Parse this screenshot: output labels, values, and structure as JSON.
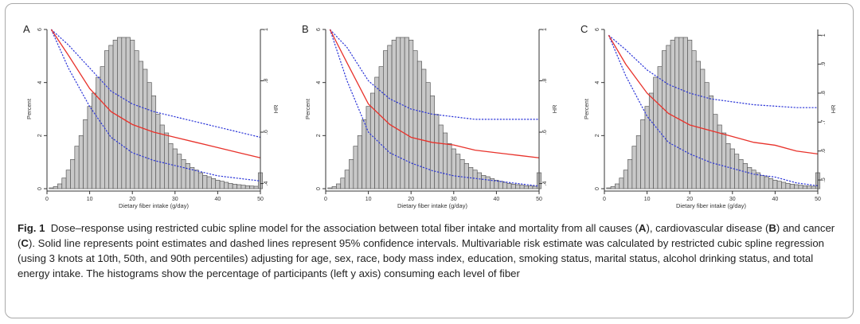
{
  "caption": {
    "label": "Fig. 1",
    "seg1": "Dose–response using restricted cubic spline model for the association between total fiber intake and mortality from all causes (",
    "letter_a": "A",
    "seg2": "), cardiovascular disease (",
    "letter_b": "B",
    "seg3": ") and cancer (",
    "letter_c": "C",
    "seg4": "). Solid line represents point estimates and dashed lines represent 95% confidence intervals. Multivariable risk estimate was calculated by restricted cubic spline regression (using 3 knots at 10th, 50th, and 90th percentiles) adjusting for age, sex, race, body mass index, education, smoking status, marital status, alcohol drinking status, and total energy intake. The histograms show the percentage of participants (left y axis) consuming each level of fiber"
  },
  "chart_data": [
    {
      "type": "bar",
      "panel": "A",
      "xlabel": "Dietary fiber intake (g/day)",
      "ylabel": "Percent",
      "y2label": "HR",
      "xlim": [
        0,
        50
      ],
      "ylim": [
        0,
        6
      ],
      "y2lim": [
        0.38,
        1.0
      ],
      "xticks": [
        0,
        10,
        20,
        30,
        40,
        50
      ],
      "yticks": [
        0,
        2,
        4,
        6
      ],
      "y2ticks": [
        0.4,
        0.6,
        0.8,
        1
      ],
      "y2ticklabels": [
        ".4",
        ".6",
        ".8",
        "1"
      ],
      "histogram": {
        "bin_start": 1,
        "bin_width": 1,
        "values": [
          0.03,
          0.08,
          0.18,
          0.4,
          0.7,
          1.1,
          1.6,
          2.0,
          2.6,
          3.1,
          3.6,
          4.2,
          4.6,
          5.2,
          5.4,
          5.6,
          5.7,
          5.7,
          5.7,
          5.6,
          5.2,
          4.8,
          4.5,
          4.0,
          3.5,
          2.8,
          2.4,
          2.1,
          1.7,
          1.5,
          1.3,
          1.1,
          0.95,
          0.8,
          0.7,
          0.6,
          0.5,
          0.45,
          0.38,
          0.32,
          0.28,
          0.24,
          0.2,
          0.17,
          0.15,
          0.13,
          0.11,
          0.1,
          0.09,
          0.6
        ]
      },
      "spline_x": [
        1,
        5,
        10,
        15,
        20,
        25,
        30,
        35,
        40,
        45,
        50
      ],
      "point_estimate": [
        1.0,
        0.9,
        0.77,
        0.68,
        0.63,
        0.6,
        0.58,
        0.56,
        0.54,
        0.52,
        0.5
      ],
      "ci_lower": [
        1.0,
        0.85,
        0.7,
        0.58,
        0.52,
        0.49,
        0.47,
        0.45,
        0.43,
        0.42,
        0.41
      ],
      "ci_upper": [
        1.0,
        0.94,
        0.85,
        0.76,
        0.71,
        0.68,
        0.66,
        0.64,
        0.62,
        0.6,
        0.58
      ]
    },
    {
      "type": "bar",
      "panel": "B",
      "xlabel": "Dietary fiber intake (g/day)",
      "ylabel": "Percent",
      "y2label": "HR",
      "xlim": [
        0,
        50
      ],
      "ylim": [
        0,
        6
      ],
      "y2lim": [
        0.38,
        1.0
      ],
      "xticks": [
        0,
        10,
        20,
        30,
        40,
        50
      ],
      "yticks": [
        0,
        2,
        4,
        6
      ],
      "y2ticks": [
        0.4,
        0.6,
        0.8,
        1
      ],
      "y2ticklabels": [
        ".4",
        ".6",
        ".8",
        "1"
      ],
      "histogram": {
        "bin_start": 1,
        "bin_width": 1,
        "values": [
          0.03,
          0.08,
          0.18,
          0.4,
          0.7,
          1.1,
          1.6,
          2.0,
          2.6,
          3.1,
          3.6,
          4.2,
          4.6,
          5.2,
          5.4,
          5.6,
          5.7,
          5.7,
          5.7,
          5.6,
          5.2,
          4.8,
          4.5,
          4.0,
          3.5,
          2.8,
          2.4,
          2.1,
          1.7,
          1.5,
          1.3,
          1.1,
          0.95,
          0.8,
          0.7,
          0.6,
          0.5,
          0.45,
          0.38,
          0.32,
          0.28,
          0.24,
          0.2,
          0.17,
          0.15,
          0.13,
          0.11,
          0.1,
          0.09,
          0.6
        ]
      },
      "spline_x": [
        1,
        5,
        10,
        15,
        20,
        25,
        30,
        35,
        40,
        45,
        50
      ],
      "point_estimate": [
        1.0,
        0.87,
        0.71,
        0.63,
        0.58,
        0.56,
        0.55,
        0.53,
        0.52,
        0.51,
        0.5
      ],
      "ci_lower": [
        1.0,
        0.8,
        0.6,
        0.52,
        0.48,
        0.45,
        0.43,
        0.42,
        0.41,
        0.4,
        0.39
      ],
      "ci_upper": [
        1.0,
        0.93,
        0.8,
        0.73,
        0.69,
        0.67,
        0.66,
        0.65,
        0.65,
        0.65,
        0.65
      ]
    },
    {
      "type": "bar",
      "panel": "C",
      "xlabel": "Dietary fiber intake (g/day)",
      "ylabel": "Percent",
      "y2label": "HR",
      "xlim": [
        0,
        50
      ],
      "ylim": [
        0,
        6
      ],
      "y2lim": [
        0.47,
        1.02
      ],
      "xticks": [
        0,
        10,
        20,
        30,
        40,
        50
      ],
      "yticks": [
        0,
        2,
        4,
        6
      ],
      "y2ticks": [
        0.5,
        0.6,
        0.7,
        0.8,
        0.9,
        1
      ],
      "y2ticklabels": [
        ".5",
        ".6",
        ".7",
        ".8",
        ".9",
        "1"
      ],
      "histogram": {
        "bin_start": 1,
        "bin_width": 1,
        "values": [
          0.03,
          0.08,
          0.18,
          0.4,
          0.7,
          1.1,
          1.6,
          2.0,
          2.6,
          3.1,
          3.6,
          4.2,
          4.6,
          5.2,
          5.4,
          5.6,
          5.7,
          5.7,
          5.7,
          5.6,
          5.2,
          4.8,
          4.5,
          4.0,
          3.5,
          2.8,
          2.4,
          2.1,
          1.7,
          1.5,
          1.3,
          1.1,
          0.95,
          0.8,
          0.7,
          0.6,
          0.5,
          0.45,
          0.38,
          0.32,
          0.28,
          0.24,
          0.2,
          0.17,
          0.15,
          0.13,
          0.11,
          0.1,
          0.09,
          0.6
        ]
      },
      "spline_x": [
        1,
        5,
        10,
        15,
        20,
        25,
        30,
        35,
        40,
        45,
        50
      ],
      "point_estimate": [
        1.0,
        0.9,
        0.8,
        0.73,
        0.69,
        0.67,
        0.65,
        0.63,
        0.62,
        0.6,
        0.59
      ],
      "ci_lower": [
        1.0,
        0.86,
        0.72,
        0.63,
        0.59,
        0.56,
        0.54,
        0.52,
        0.51,
        0.49,
        0.48
      ],
      "ci_upper": [
        1.0,
        0.95,
        0.88,
        0.83,
        0.8,
        0.78,
        0.77,
        0.76,
        0.755,
        0.75,
        0.75
      ]
    }
  ]
}
